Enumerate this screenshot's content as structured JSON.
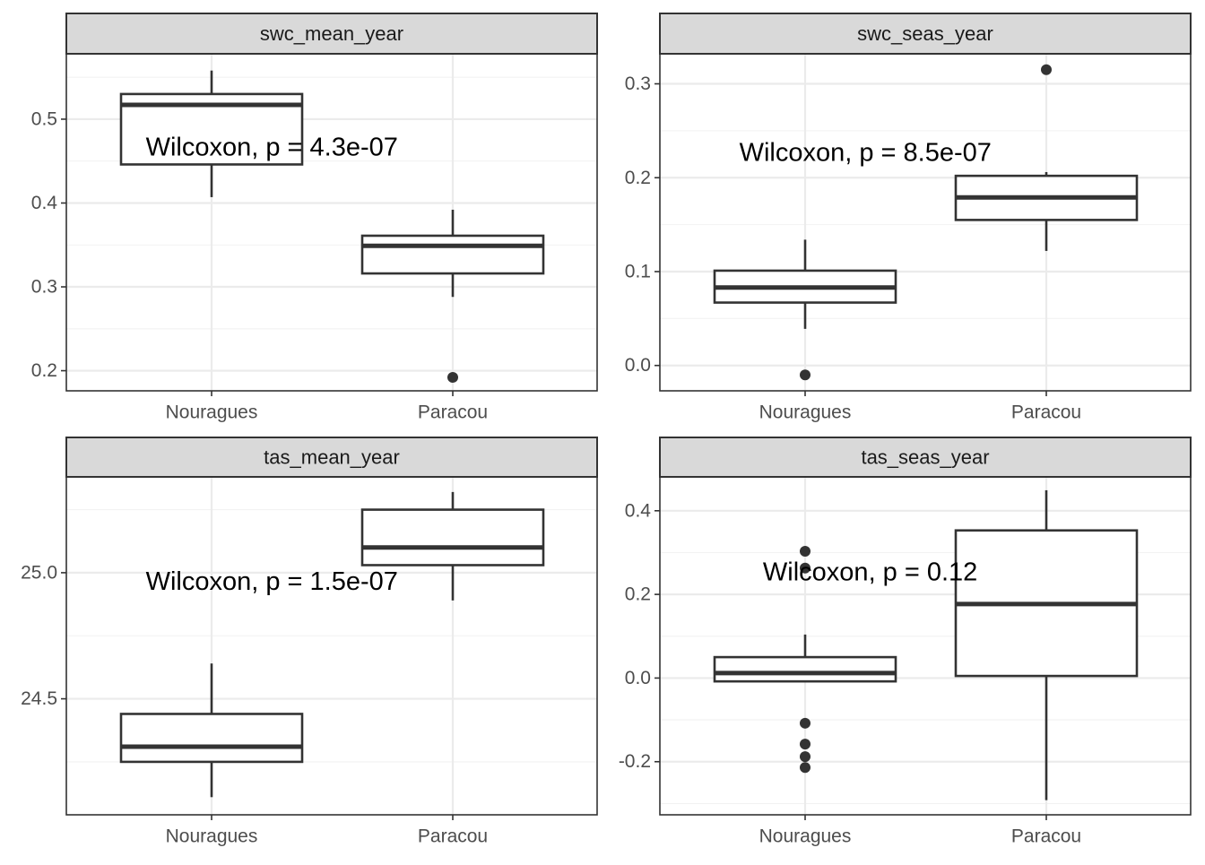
{
  "chart_data": [
    {
      "type": "boxplot",
      "title": "swc_mean_year",
      "categories": [
        "Nouragues",
        "Paracou"
      ],
      "ylim": [
        0.176,
        0.578
      ],
      "yticks": [
        0.2,
        0.3,
        0.4,
        0.5
      ],
      "ytick_labels": [
        "0.2",
        "0.3",
        "0.4",
        "0.5"
      ],
      "boxes": [
        {
          "category": "Nouragues",
          "min": 0.407,
          "q1": 0.446,
          "median": 0.517,
          "q3": 0.53,
          "max": 0.558,
          "outliers": []
        },
        {
          "category": "Paracou",
          "min": 0.288,
          "q1": 0.316,
          "median": 0.349,
          "q3": 0.361,
          "max": 0.392,
          "outliers": [
            0.192
          ]
        }
      ],
      "annotation": {
        "text": "Wilcoxon, p = 4.3e-07",
        "x": 1.25,
        "y": 0.465
      }
    },
    {
      "type": "boxplot",
      "title": "swc_seas_year",
      "categories": [
        "Nouragues",
        "Paracou"
      ],
      "ylim": [
        -0.027,
        0.332
      ],
      "yticks": [
        0.0,
        0.1,
        0.2,
        0.3
      ],
      "ytick_labels": [
        "0.0",
        "0.1",
        "0.2",
        "0.3"
      ],
      "boxes": [
        {
          "category": "Nouragues",
          "min": 0.039,
          "q1": 0.067,
          "median": 0.083,
          "q3": 0.101,
          "max": 0.134,
          "outliers": [
            -0.01
          ]
        },
        {
          "category": "Paracou",
          "min": 0.122,
          "q1": 0.155,
          "median": 0.179,
          "q3": 0.202,
          "max": 0.206,
          "outliers": [
            0.315
          ]
        }
      ],
      "annotation": {
        "text": "Wilcoxon, p = 8.5e-07",
        "x": 1.25,
        "y": 0.225
      }
    },
    {
      "type": "boxplot",
      "title": "tas_mean_year",
      "categories": [
        "Nouragues",
        "Paracou"
      ],
      "ylim": [
        24.04,
        25.38
      ],
      "yticks": [
        24.5,
        25.0
      ],
      "ytick_labels": [
        "24.5",
        "25.0"
      ],
      "boxes": [
        {
          "category": "Nouragues",
          "min": 24.11,
          "q1": 24.25,
          "median": 24.31,
          "q3": 24.44,
          "max": 24.64,
          "outliers": []
        },
        {
          "category": "Paracou",
          "min": 24.89,
          "q1": 25.03,
          "median": 25.1,
          "q3": 25.25,
          "max": 25.32,
          "outliers": []
        }
      ],
      "annotation": {
        "text": "Wilcoxon, p = 1.5e-07",
        "x": 1.25,
        "y": 24.96
      }
    },
    {
      "type": "boxplot",
      "title": "tas_seas_year",
      "categories": [
        "Nouragues",
        "Paracou"
      ],
      "ylim": [
        -0.327,
        0.481
      ],
      "yticks": [
        -0.2,
        0.0,
        0.2,
        0.4
      ],
      "ytick_labels": [
        "-0.2",
        "0.0",
        "0.2",
        "0.4"
      ],
      "boxes": [
        {
          "category": "Nouragues",
          "min": -0.008,
          "q1": -0.008,
          "median": 0.012,
          "q3": 0.05,
          "max": 0.104,
          "outliers": [
            0.303,
            0.263,
            -0.108,
            -0.158,
            -0.188,
            -0.214
          ]
        },
        {
          "category": "Paracou",
          "min": -0.292,
          "q1": 0.005,
          "median": 0.177,
          "q3": 0.353,
          "max": 0.449,
          "outliers": []
        }
      ],
      "annotation": {
        "text": "Wilcoxon, p = 0.12",
        "x": 1.27,
        "y": 0.25
      }
    }
  ],
  "colors": {
    "strip_background": "#d9d9d9",
    "box_line": "#333333",
    "grid": "#ebebeb",
    "panel_border": "#333333"
  }
}
